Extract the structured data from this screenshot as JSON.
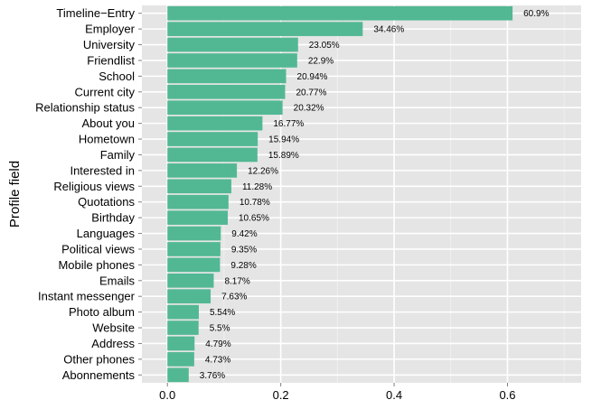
{
  "chart_data": {
    "type": "bar",
    "orientation": "horizontal",
    "ylabel": "Profile field",
    "xlabel": "",
    "xlim": [
      -0.045,
      0.73
    ],
    "x_ticks": [
      0.0,
      0.2,
      0.4,
      0.6
    ],
    "x_tick_labels": [
      "0.0",
      "0.2",
      "0.4",
      "0.6"
    ],
    "grid": true,
    "bar_color": "#52B894",
    "panel_color": "#E5E5E5",
    "gridline_color": "#FFFFFF",
    "categories": [
      "Timeline−Entry",
      "Employer",
      "University",
      "Friendlist",
      "School",
      "Current city",
      "Relationship status",
      "About you",
      "Hometown",
      "Family",
      "Interested in",
      "Religious views",
      "Quotations",
      "Birthday",
      "Languages",
      "Political views",
      "Mobile phones",
      "Emails",
      "Instant messenger",
      "Photo album",
      "Website",
      "Address",
      "Other phones",
      "Abonnements"
    ],
    "values": [
      0.609,
      0.3446,
      0.2305,
      0.229,
      0.2094,
      0.2077,
      0.2032,
      0.1677,
      0.1594,
      0.1589,
      0.1226,
      0.1128,
      0.1078,
      0.1065,
      0.0942,
      0.0935,
      0.0928,
      0.0817,
      0.0763,
      0.0554,
      0.055,
      0.0479,
      0.0473,
      0.0376
    ],
    "data_labels": [
      "60.9%",
      "34.46%",
      "23.05%",
      "22.9%",
      "20.94%",
      "20.77%",
      "20.32%",
      "16.77%",
      "15.94%",
      "15.89%",
      "12.26%",
      "11.28%",
      "10.78%",
      "10.65%",
      "9.42%",
      "9.35%",
      "9.28%",
      "8.17%",
      "7.63%",
      "5.54%",
      "5.5%",
      "4.79%",
      "4.73%",
      "3.76%"
    ]
  }
}
